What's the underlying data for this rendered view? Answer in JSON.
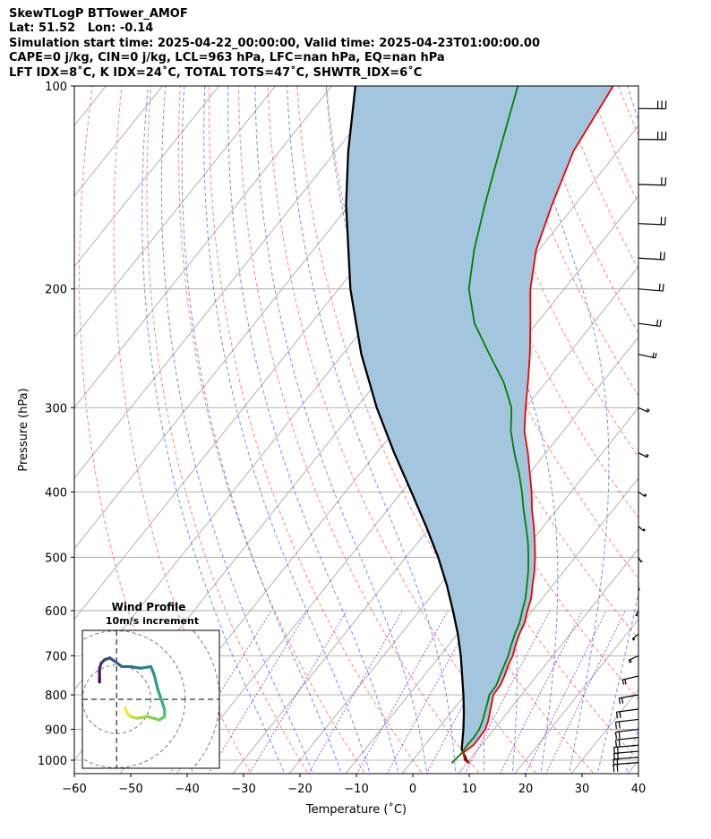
{
  "header": {
    "line1": "SkewTLogP BTTower_AMOF",
    "line2": "Lat: 51.52   Lon: -0.14",
    "line3": "Simulation start time: 2025-04-22_00:00:00, Valid time: 2025-04-23T01:00:00.00",
    "line4": "CAPE=0 j/kg, CIN=0 j/kg, LCL=963 hPa, LFC=nan hPa, EQ=nan hPa",
    "line5": "LFT IDX=8˚C, K IDX=24˚C, TOTAL TOTS=47˚C, SHWTR_IDX=6˚C"
  },
  "colors": {
    "temperature": "#ee0000",
    "dewpoint": "#008000",
    "parcel": "#000000",
    "cin_fill": "#a3c6de",
    "dry_adiabat": "#ff5a5a",
    "moist_adiabat": "#4455ff",
    "mixing_ratio": "#9a35c8",
    "isotherm": "#a0a0a0"
  },
  "chart_data": [
    {
      "type": "line",
      "subtype": "skew-t log-p",
      "xlabel": "Temperature (˚C)",
      "ylabel": "Pressure (hPa)",
      "xlim": [
        -60,
        40
      ],
      "ylim": [
        1050,
        100
      ],
      "y_scale": "log",
      "grid": true,
      "xticks": [
        "−60",
        "−50",
        "−40",
        "−30",
        "−20",
        "−10",
        "0",
        "10",
        "20",
        "30",
        "40"
      ],
      "yticks": [
        "100",
        "200",
        "300",
        "400",
        "500",
        "600",
        "700",
        "800",
        "900",
        "1000"
      ],
      "series": [
        {
          "role": "temperature",
          "points": [
            [
              1010,
              10.4
            ],
            [
              1000,
              9.2
            ],
            [
              975,
              7.9
            ],
            [
              950,
              8.6
            ],
            [
              925,
              8.6
            ],
            [
              900,
              8.5
            ],
            [
              875,
              7.8
            ],
            [
              850,
              6.9
            ],
            [
              825,
              6.0
            ],
            [
              800,
              5.0
            ],
            [
              775,
              4.9
            ],
            [
              750,
              4.3
            ],
            [
              725,
              3.5
            ],
            [
              700,
              2.9
            ],
            [
              675,
              1.9
            ],
            [
              650,
              1.0
            ],
            [
              625,
              0.3
            ],
            [
              600,
              -0.9
            ],
            [
              575,
              -2.0
            ],
            [
              550,
              -3.6
            ],
            [
              525,
              -5.2
            ],
            [
              500,
              -7.1
            ],
            [
              475,
              -9.3
            ],
            [
              450,
              -11.7
            ],
            [
              425,
              -14.4
            ],
            [
              400,
              -17.0
            ],
            [
              375,
              -20.0
            ],
            [
              350,
              -23.2
            ],
            [
              325,
              -26.9
            ],
            [
              300,
              -30.0
            ],
            [
              275,
              -33.2
            ],
            [
              250,
              -36.8
            ],
            [
              225,
              -41.1
            ],
            [
              200,
              -46.0
            ],
            [
              175,
              -50.5
            ],
            [
              150,
              -54.1
            ],
            [
              125,
              -57.9
            ],
            [
              100,
              -60.1
            ]
          ]
        },
        {
          "role": "dewpoint",
          "points": [
            [
              1010,
              7.3
            ],
            [
              1000,
              7.4
            ],
            [
              975,
              7.7
            ],
            [
              950,
              7.5
            ],
            [
              925,
              7.6
            ],
            [
              900,
              7.4
            ],
            [
              875,
              6.8
            ],
            [
              850,
              6.0
            ],
            [
              825,
              5.2
            ],
            [
              800,
              4.3
            ],
            [
              775,
              4.2
            ],
            [
              750,
              3.5
            ],
            [
              725,
              2.8
            ],
            [
              700,
              2.1
            ],
            [
              675,
              1.1
            ],
            [
              650,
              0.2
            ],
            [
              625,
              -0.6
            ],
            [
              600,
              -1.8
            ],
            [
              575,
              -3.0
            ],
            [
              550,
              -4.6
            ],
            [
              525,
              -6.3
            ],
            [
              500,
              -8.3
            ],
            [
              475,
              -10.5
            ],
            [
              450,
              -13.1
            ],
            [
              425,
              -15.9
            ],
            [
              400,
              -18.7
            ],
            [
              375,
              -21.9
            ],
            [
              350,
              -25.6
            ],
            [
              325,
              -29.3
            ],
            [
              300,
              -32.5
            ],
            [
              275,
              -37.5
            ],
            [
              250,
              -44.0
            ],
            [
              225,
              -51.0
            ],
            [
              200,
              -56.9
            ],
            [
              175,
              -61.5
            ],
            [
              150,
              -66.0
            ],
            [
              125,
              -71.0
            ],
            [
              100,
              -77.0
            ]
          ]
        },
        {
          "role": "parcel",
          "points": [
            [
              1010,
              10.4
            ],
            [
              1000,
              9.5
            ],
            [
              963,
              7.1
            ],
            [
              900,
              4.6
            ],
            [
              850,
              2.3
            ],
            [
              800,
              -0.3
            ],
            [
              750,
              -3.2
            ],
            [
              700,
              -6.3
            ],
            [
              650,
              -9.9
            ],
            [
              600,
              -14.1
            ],
            [
              550,
              -18.8
            ],
            [
              500,
              -24.3
            ],
            [
              450,
              -30.8
            ],
            [
              400,
              -38.3
            ],
            [
              350,
              -46.9
            ],
            [
              300,
              -56.4
            ],
            [
              250,
              -66.7
            ],
            [
              200,
              -77.9
            ],
            [
              150,
              -90.6
            ],
            [
              125,
              -97.8
            ],
            [
              100,
              -105.8
            ]
          ]
        }
      ],
      "wind_barbs": [
        {
          "p": 1008,
          "u": 18,
          "v": 8
        },
        {
          "p": 990,
          "u": 18,
          "v": 8
        },
        {
          "p": 970,
          "u": 20,
          "v": 10
        },
        {
          "p": 950,
          "u": 20,
          "v": 10
        },
        {
          "p": 925,
          "u": 18,
          "v": 12
        },
        {
          "p": 900,
          "u": 18,
          "v": 12
        },
        {
          "p": 870,
          "u": 18,
          "v": 12
        },
        {
          "p": 840,
          "u": 16,
          "v": 12
        },
        {
          "p": 800,
          "u": 14,
          "v": 14
        },
        {
          "p": 750,
          "u": 10,
          "v": 14
        },
        {
          "p": 700,
          "u": 6,
          "v": 16
        },
        {
          "p": 650,
          "u": 4,
          "v": 18
        },
        {
          "p": 600,
          "u": 2,
          "v": 20
        },
        {
          "p": 550,
          "u": 0,
          "v": 22
        },
        {
          "p": 500,
          "u": -2,
          "v": 22
        },
        {
          "p": 450,
          "u": -4,
          "v": 20
        },
        {
          "p": 400,
          "u": -5,
          "v": 20
        },
        {
          "p": 350,
          "u": -6,
          "v": 18
        },
        {
          "p": 300,
          "u": -6,
          "v": 16
        },
        {
          "p": 250,
          "u": -14,
          "v": 18
        },
        {
          "p": 225,
          "u": -18,
          "v": 14
        },
        {
          "p": 200,
          "u": -20,
          "v": 10
        },
        {
          "p": 180,
          "u": -22,
          "v": 8
        },
        {
          "p": 160,
          "u": -24,
          "v": 6
        },
        {
          "p": 140,
          "u": -24,
          "v": 4
        },
        {
          "p": 120,
          "u": -26,
          "v": 2
        },
        {
          "p": 108,
          "u": -26,
          "v": 2
        }
      ]
    },
    {
      "type": "line",
      "subtype": "hodograph",
      "title": "Wind Profile",
      "subtitle": "10m/s increment",
      "xlim": [
        -10,
        30
      ],
      "ylim": [
        -20,
        20
      ],
      "rings": [
        10,
        20,
        30
      ],
      "colormap": "viridis",
      "points": [
        [
          -5,
          5
        ],
        [
          -5,
          7
        ],
        [
          -5,
          9
        ],
        [
          -4.5,
          10.5
        ],
        [
          -3.5,
          11.5
        ],
        [
          -2,
          12
        ],
        [
          -0.5,
          11
        ],
        [
          1.5,
          9.5
        ],
        [
          4,
          9.5
        ],
        [
          7,
          9
        ],
        [
          10,
          9.5
        ],
        [
          11,
          7
        ],
        [
          12,
          3
        ],
        [
          13,
          0
        ],
        [
          14,
          -3
        ],
        [
          14,
          -5
        ],
        [
          12.5,
          -6
        ],
        [
          9,
          -5
        ],
        [
          6,
          -5.5
        ],
        [
          4,
          -5
        ],
        [
          3,
          -4
        ],
        [
          2.5,
          -2.5
        ]
      ]
    }
  ]
}
